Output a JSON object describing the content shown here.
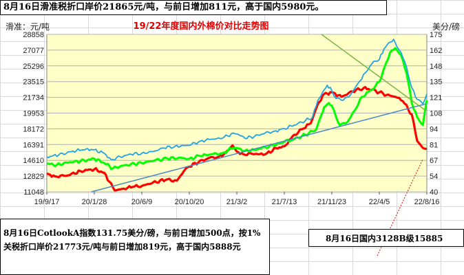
{
  "notes": {
    "top": "8月16日滑准税折口岸价21865元/吨，与前日增加811元，高于国内5980元。",
    "bottom_left": "8月16日CotlookA指数131.75美分/磅，与前日增加500点，按1%关税折口岸价21773元/吨与前日增加819元，高于国内5888元",
    "bottom_right": "8月16日国内3128B级15885"
  },
  "chart_data": {
    "type": "line",
    "title": "19/22年度国内外棉价对比走势图",
    "ylabel_left": "滑准：元/吨",
    "ylabel_right": "美分/磅",
    "x_tick_labels": [
      "19/9/17",
      "20/1/28",
      "20/6/9",
      "20/10/20",
      "21/3/2",
      "21/7/13",
      "21/11/23",
      "22/4/5",
      "22/8/16"
    ],
    "x_range": [
      "2019-09-17",
      "2022-08-16"
    ],
    "yleft_ticks": [
      11048,
      12829,
      14610,
      16391,
      18172,
      19953,
      21734,
      23515,
      25296,
      27077,
      28858
    ],
    "yright_ticks": [
      40,
      54,
      67,
      81,
      94,
      108,
      121,
      135,
      148,
      162,
      175
    ],
    "ylim_left": [
      11048,
      28858
    ],
    "ylim_right": [
      40,
      175
    ],
    "grid": true,
    "plot_background": "#ffffc8",
    "series": [
      {
        "color": "#ff0000",
        "x": [
          "2019-09-17",
          "2019-10-10",
          "2019-11-15",
          "2019-12-20",
          "2020-01-28",
          "2020-02-25",
          "2020-03-10",
          "2020-03-25",
          "2020-04-20",
          "2020-05-15",
          "2020-06-09",
          "2020-07-10",
          "2020-08-15",
          "2020-09-15",
          "2020-10-05",
          "2020-10-20",
          "2020-11-15",
          "2020-12-15",
          "2021-01-10",
          "2021-01-30",
          "2021-02-18",
          "2021-03-02",
          "2021-03-20",
          "2021-04-10",
          "2021-05-05",
          "2021-05-25",
          "2021-06-20",
          "2021-07-13",
          "2021-08-10",
          "2021-09-05",
          "2021-09-25",
          "2021-10-15",
          "2021-11-01",
          "2021-11-23",
          "2021-12-20",
          "2022-01-20",
          "2022-02-20",
          "2022-03-15",
          "2022-04-05",
          "2022-04-25",
          "2022-05-20",
          "2022-06-10",
          "2022-07-05",
          "2022-07-20",
          "2022-08-05",
          "2022-08-16"
        ],
        "y": [
          13100,
          12800,
          12900,
          13400,
          13600,
          13200,
          12200,
          11200,
          11400,
          11600,
          11700,
          12100,
          12400,
          12300,
          13400,
          13900,
          14400,
          14900,
          15000,
          15500,
          16300,
          15600,
          15300,
          15400,
          15300,
          15400,
          16000,
          16200,
          17500,
          18200,
          18800,
          21000,
          22100,
          22300,
          21800,
          22400,
          22800,
          22600,
          22300,
          22000,
          21800,
          21300,
          19800,
          16800,
          16000,
          15900
        ]
      },
      {
        "color": "#00ff00",
        "x": [
          "2019-09-17",
          "2019-10-15",
          "2019-11-20",
          "2019-12-20",
          "2020-01-28",
          "2020-02-25",
          "2020-03-20",
          "2020-04-15",
          "2020-05-20",
          "2020-06-09",
          "2020-07-15",
          "2020-08-20",
          "2020-09-20",
          "2020-10-20",
          "2020-11-20",
          "2020-12-20",
          "2021-01-20",
          "2021-02-20",
          "2021-03-02",
          "2021-03-25",
          "2021-04-20",
          "2021-05-20",
          "2021-06-15",
          "2021-07-13",
          "2021-08-10",
          "2021-09-10",
          "2021-10-10",
          "2021-10-25",
          "2021-11-01",
          "2021-11-15",
          "2021-11-23",
          "2021-12-05",
          "2021-12-15",
          "2022-01-05",
          "2022-01-25",
          "2022-02-15",
          "2022-03-15",
          "2022-04-05",
          "2022-04-20",
          "2022-05-05",
          "2022-05-20",
          "2022-06-05",
          "2022-06-20",
          "2022-07-05",
          "2022-07-20",
          "2022-08-05",
          "2022-08-16"
        ],
        "y": [
          14200,
          14100,
          14400,
          14500,
          14800,
          14300,
          13700,
          14000,
          14200,
          14300,
          14600,
          14800,
          14900,
          14800,
          15100,
          15300,
          15400,
          16000,
          16000,
          15700,
          15800,
          16100,
          16300,
          16700,
          17000,
          17500,
          18100,
          19800,
          20600,
          21100,
          20800,
          19500,
          18600,
          18900,
          20200,
          21800,
          22600,
          23500,
          25200,
          26800,
          27300,
          26500,
          24500,
          21100,
          19500,
          18600,
          21400
        ]
      },
      {
        "color": "#1fa3e6",
        "x": [
          "2019-09-17",
          "2019-10-20",
          "2019-11-25",
          "2020-01-05",
          "2020-01-28",
          "2020-02-25",
          "2020-03-15",
          "2020-04-10",
          "2020-05-10",
          "2020-06-09",
          "2020-07-10",
          "2020-08-10",
          "2020-09-10",
          "2020-10-20",
          "2020-11-20",
          "2020-12-20",
          "2021-01-20",
          "2021-02-20",
          "2021-03-02",
          "2021-03-25",
          "2021-04-20",
          "2021-05-20",
          "2021-06-15",
          "2021-07-13",
          "2021-08-10",
          "2021-09-10",
          "2021-09-30",
          "2021-10-15",
          "2021-10-28",
          "2021-11-10",
          "2021-11-23",
          "2021-12-05",
          "2021-12-20",
          "2022-01-10",
          "2022-02-10",
          "2022-03-01",
          "2022-03-20",
          "2022-04-05",
          "2022-04-18",
          "2022-05-01",
          "2022-05-15",
          "2022-05-25",
          "2022-06-05",
          "2022-06-20",
          "2022-07-05",
          "2022-07-20",
          "2022-08-05",
          "2022-08-16"
        ],
        "y": [
          15000,
          15200,
          15600,
          15900,
          15800,
          15400,
          14700,
          15000,
          15300,
          15400,
          15600,
          16000,
          16200,
          16300,
          16800,
          17000,
          17100,
          17700,
          17600,
          17100,
          17300,
          17700,
          17900,
          18200,
          18600,
          19100,
          19500,
          21400,
          22300,
          23100,
          22500,
          21600,
          21400,
          21800,
          23600,
          24700,
          25800,
          26000,
          27200,
          27900,
          28300,
          27400,
          26800,
          25200,
          22800,
          21500,
          21000,
          22100
        ]
      },
      {
        "color": "#77b544",
        "x": [
          "2021-10-25",
          "2022-08-14"
        ],
        "y": [
          28858,
          20200
        ]
      },
      {
        "color": "#4a86c8",
        "x": [
          "2020-01-20",
          "2022-08-14"
        ],
        "y": [
          11048,
          21000
        ]
      }
    ]
  }
}
